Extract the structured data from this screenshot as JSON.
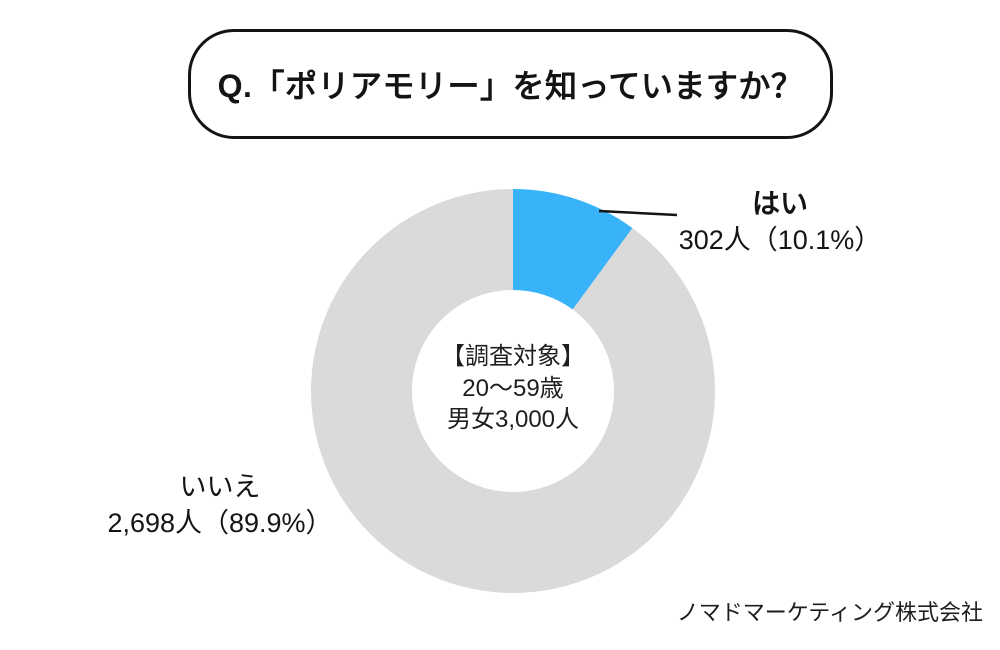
{
  "title": {
    "text": "Q.「ポリアモリー」を知っていますか？"
  },
  "chart_data": {
    "type": "pie",
    "donut": true,
    "start_angle_deg": 0,
    "direction": "clockwise",
    "categories": [
      "はい",
      "いいえ"
    ],
    "values": [
      302,
      2698
    ],
    "total": 3000,
    "percent_labels": [
      "10.1%",
      "89.9%"
    ],
    "colors": [
      "#38B3F9",
      "#DADADA"
    ],
    "center_note_lines": [
      "【調査対象】",
      "20〜59歳",
      "男女3,000人"
    ],
    "labels": {
      "yes": {
        "name": "はい",
        "value_line": "302人（10.1%）"
      },
      "no": {
        "name": "いいえ",
        "value_line": "2,698人（89.9%）"
      }
    },
    "legend_position": "callouts",
    "grid": false
  },
  "footer": {
    "credit": "ノマドマーケティング株式会社"
  }
}
